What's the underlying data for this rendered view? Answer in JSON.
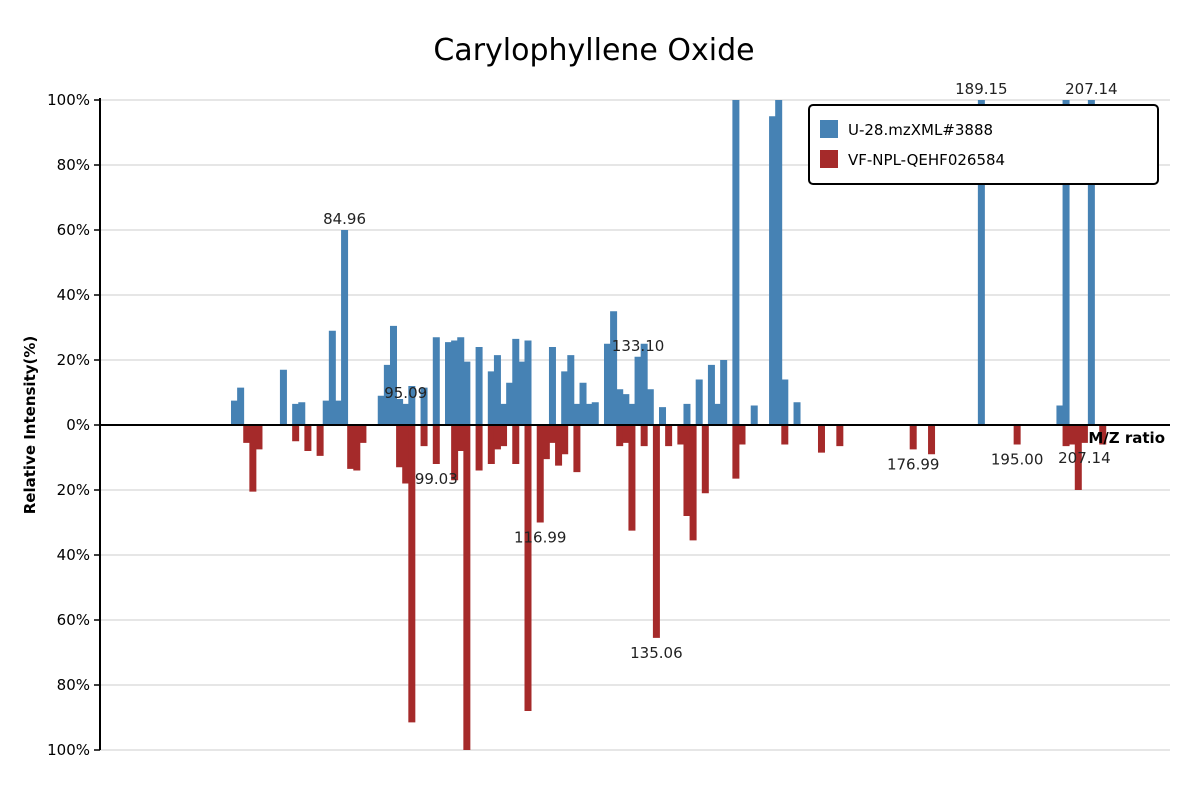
{
  "chart_data": {
    "type": "bar",
    "title": "Carylophyllene Oxide",
    "xlabel": "M/Z ratio",
    "ylabel": "Relative Intensity(%)",
    "xlim": [
      45,
      220
    ],
    "ylim_top": [
      0,
      100
    ],
    "ylim_bottom": [
      0,
      100
    ],
    "y_ticks_top": [
      "0%",
      "20%",
      "40%",
      "60%",
      "80%",
      "100%"
    ],
    "y_ticks_bottom": [
      "20%",
      "40%",
      "60%",
      "80%",
      "100%"
    ],
    "grid": true,
    "legend_position": "top-right",
    "series": [
      {
        "name": "U-28.mzXML#3888",
        "direction": "up",
        "color": "#4682b4",
        "mz": [
          67,
          68,
          75,
          77,
          78,
          82,
          83,
          84,
          85,
          91,
          92,
          93,
          94,
          95,
          96,
          98,
          100,
          102,
          103,
          104,
          105,
          107,
          109,
          110,
          111,
          112,
          113,
          114,
          115,
          119,
          121,
          122,
          123,
          124,
          125,
          126,
          128,
          129,
          130,
          131,
          132,
          133,
          134,
          135,
          137,
          141,
          143,
          145,
          146,
          147,
          149,
          152,
          155,
          156,
          157,
          159,
          189.15,
          202,
          203,
          207.14
        ],
        "values": [
          7.5,
          11.5,
          17,
          6.5,
          7,
          7.5,
          29,
          7.5,
          60,
          9,
          18.5,
          30.5,
          8,
          6.5,
          12,
          11.5,
          27,
          25.5,
          26,
          27,
          19.5,
          24,
          16.5,
          21.5,
          6.5,
          13,
          26.5,
          19.5,
          26,
          24,
          16.5,
          21.5,
          6.5,
          13,
          6.5,
          7,
          25,
          35,
          11,
          9.5,
          6.5,
          21,
          25,
          11,
          5.5,
          6.5,
          14,
          18.5,
          6.5,
          20,
          100,
          6,
          95,
          100,
          14,
          7,
          100,
          6,
          100,
          100
        ],
        "labels": [
          {
            "mz": 84.96,
            "text": "84.96"
          },
          {
            "mz": 95.09,
            "text": "95.09"
          },
          {
            "mz": 133.1,
            "text": "133.10"
          },
          {
            "mz": 189.15,
            "text": "189.15"
          },
          {
            "mz": 207.14,
            "text": "207.14"
          }
        ]
      },
      {
        "name": "VF-NPL-QEHF026584",
        "direction": "down",
        "color": "#a52a2a",
        "mz": [
          69,
          70,
          71,
          77,
          79,
          81,
          86,
          87,
          88,
          94,
          95,
          96,
          98,
          100,
          103,
          104,
          105,
          107,
          109,
          110,
          111,
          113,
          115,
          117,
          118,
          119,
          120,
          121,
          123,
          130,
          131,
          132,
          134,
          136,
          138,
          140,
          141,
          142,
          144,
          149,
          150,
          157,
          163,
          166,
          178,
          181,
          195,
          203,
          204,
          205,
          206,
          209
        ],
        "values": [
          5.5,
          20.5,
          7.5,
          5,
          8,
          9.5,
          13.5,
          14,
          5.5,
          13,
          18,
          91.5,
          6.5,
          12,
          17,
          8,
          100,
          14,
          12,
          7.5,
          6.5,
          12,
          88,
          30,
          10.5,
          5.5,
          12.5,
          9,
          14.5,
          6.5,
          5.5,
          32.5,
          6.5,
          65.5,
          6.5,
          6,
          28,
          35.5,
          21,
          16.5,
          6,
          6,
          8.5,
          6.5,
          7.5,
          9,
          6,
          6.5,
          6,
          20,
          5.5,
          6
        ],
        "labels": [
          {
            "mz": 99.03,
            "text": "99.03"
          },
          {
            "mz": 116.99,
            "text": "116.99"
          },
          {
            "mz": 135.06,
            "text": "135.06"
          },
          {
            "mz": 176.99,
            "text": "176.99"
          },
          {
            "mz": 195.0,
            "text": "195.00"
          },
          {
            "mz": 207.14,
            "text": "207.14"
          }
        ]
      }
    ]
  }
}
